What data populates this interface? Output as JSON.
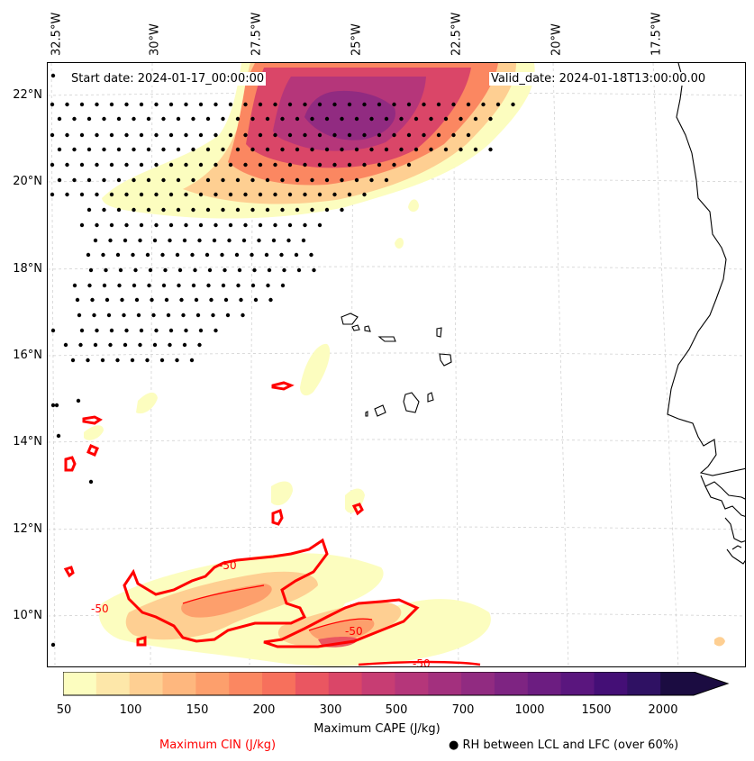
{
  "map": {
    "start_date": "Start date: 2024-01-17_00:00:00",
    "valid_date": "Valid_date: 2024-01-18T13:00:00.00",
    "lon_labels": [
      "32.5°W",
      "30°W",
      "27.5°W",
      "25°W",
      "22.5°W",
      "20°W",
      "17.5°W"
    ],
    "lat_labels": [
      "22°N",
      "20°N",
      "18°N",
      "16°N",
      "14°N",
      "12°N",
      "10°N"
    ],
    "contour_labels": [
      "-50",
      "-50",
      "-50",
      "-50"
    ]
  },
  "colorbar": {
    "ticks": [
      "50",
      "100",
      "150",
      "200",
      "300",
      "500",
      "700",
      "1000",
      "1500",
      "2000"
    ],
    "colors": [
      "#fcfdbf",
      "#fde7a9",
      "#fecf92",
      "#feb77e",
      "#fd9f6c",
      "#fb8761",
      "#f7705c",
      "#ea5661",
      "#da4668",
      "#c73d73",
      "#b5367a",
      "#a3307e",
      "#912b81",
      "#7e2482",
      "#6c1d81",
      "#5a167e",
      "#440f76",
      "#2f1163",
      "#1b0c41"
    ],
    "cape_label": "Maximum CAPE (J/kg)",
    "cin_label": "Maximum CIN (J/kg)",
    "rh_label": "RH between LCL and LFC (over 60%)",
    "cin_color": "#ff0000"
  }
}
